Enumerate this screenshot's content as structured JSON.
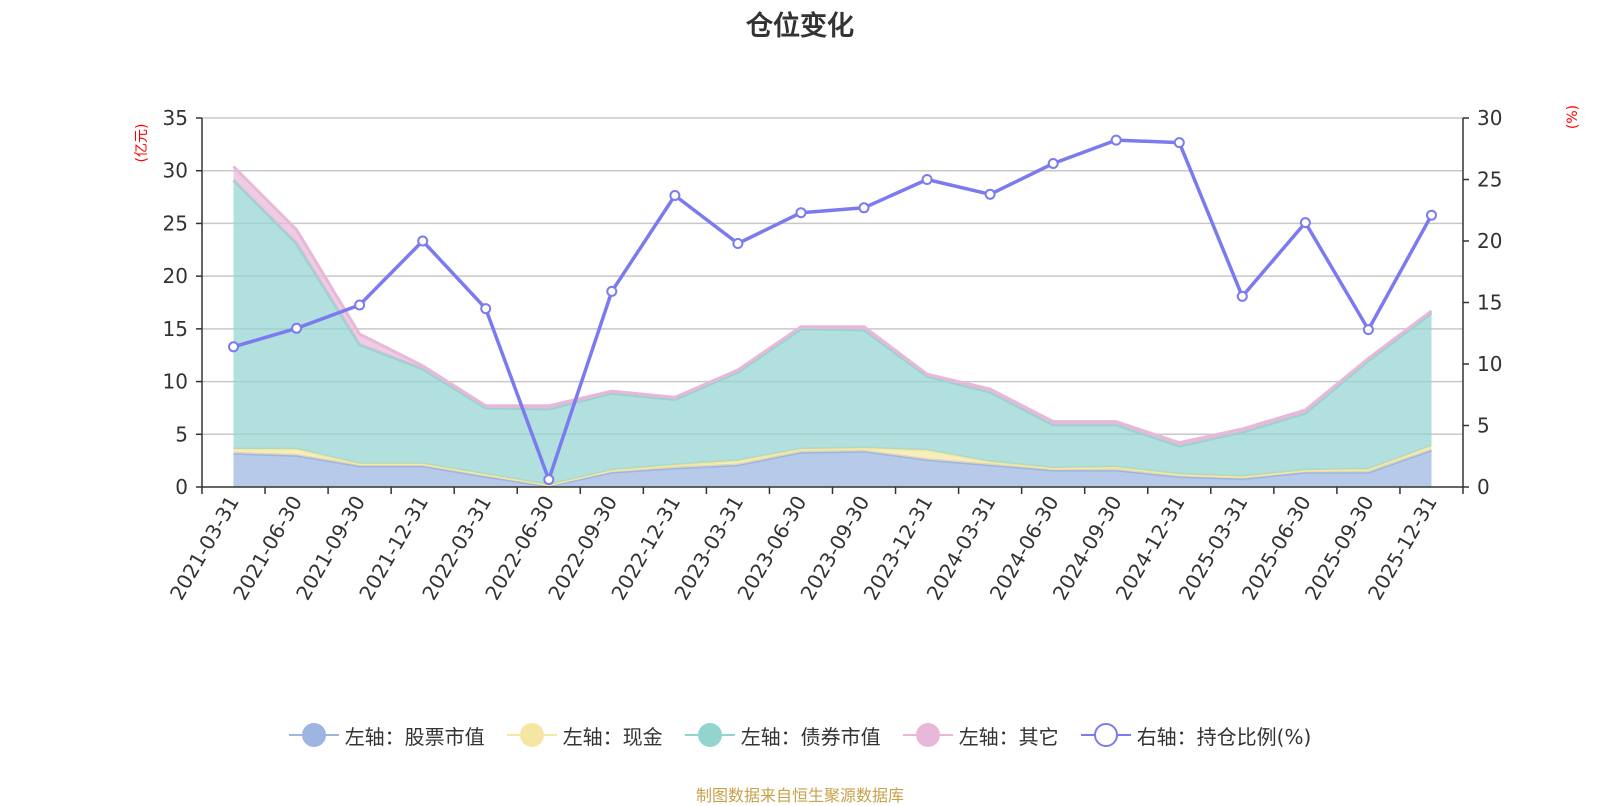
{
  "title": "仓位变化",
  "source_note": "制图数据来自恒生聚源数据库",
  "chart_data": {
    "type": "area",
    "title": "仓位变化",
    "categories": [
      "2021-03-31",
      "2021-06-30",
      "2021-09-30",
      "2021-12-31",
      "2022-03-31",
      "2022-06-30",
      "2022-09-30",
      "2022-12-31",
      "2023-03-31",
      "2023-06-30",
      "2023-09-30",
      "2023-12-31",
      "2024-03-31",
      "2024-06-30",
      "2024-09-30",
      "2024-12-31",
      "2025-03-31",
      "2025-06-30",
      "2025-09-30",
      "2025-12-31"
    ],
    "left_axis": {
      "unit": "(亿元)",
      "ylim": [
        0,
        35
      ],
      "ticks": [
        0,
        5,
        10,
        15,
        20,
        25,
        30,
        35
      ]
    },
    "right_axis": {
      "unit": "(%)",
      "ylim": [
        0,
        30
      ],
      "ticks": [
        0,
        5,
        10,
        15,
        20,
        25,
        30
      ]
    },
    "series": [
      {
        "name": "左轴：股票市值",
        "axis": "left",
        "stack": true,
        "color": "#9db5e0",
        "values": [
          3.2,
          3.0,
          2.0,
          2.0,
          1.0,
          0.1,
          1.4,
          1.8,
          2.1,
          3.3,
          3.4,
          2.6,
          2.1,
          1.6,
          1.6,
          1.0,
          0.8,
          1.4,
          1.4,
          3.5
        ]
      },
      {
        "name": "左轴：现金",
        "axis": "left",
        "stack": true,
        "color": "#f5e6a3",
        "values": [
          0.4,
          0.6,
          0.2,
          0.2,
          0.2,
          0.1,
          0.2,
          0.3,
          0.4,
          0.3,
          0.3,
          0.9,
          0.3,
          0.2,
          0.3,
          0.2,
          0.2,
          0.2,
          0.3,
          0.4
        ]
      },
      {
        "name": "左轴：债券市值",
        "axis": "left",
        "stack": true,
        "color": "#93d4d1",
        "values": [
          25.5,
          19.5,
          11.3,
          9.0,
          6.3,
          7.2,
          7.3,
          6.2,
          8.4,
          11.4,
          11.2,
          7.0,
          6.6,
          4.1,
          4.0,
          2.7,
          4.2,
          5.4,
          10.3,
          12.6
        ]
      },
      {
        "name": "左轴：其它",
        "axis": "left",
        "stack": true,
        "color": "#e8b8d8",
        "values": [
          1.3,
          1.3,
          1.0,
          0.3,
          0.2,
          0.3,
          0.2,
          0.2,
          0.2,
          0.2,
          0.3,
          0.2,
          0.3,
          0.3,
          0.3,
          0.3,
          0.3,
          0.3,
          0.2,
          0.2
        ]
      },
      {
        "name": "右轴：持仓比例(%)",
        "axis": "right",
        "type": "line",
        "color": "#7b7bef",
        "values": [
          11.4,
          12.9,
          14.8,
          20.0,
          14.5,
          0.6,
          15.9,
          23.7,
          19.8,
          22.3,
          22.7,
          25.0,
          23.8,
          26.3,
          28.2,
          28.0,
          15.5,
          21.5,
          12.8,
          22.1
        ]
      }
    ],
    "legend_position": "bottom",
    "grid": true
  }
}
